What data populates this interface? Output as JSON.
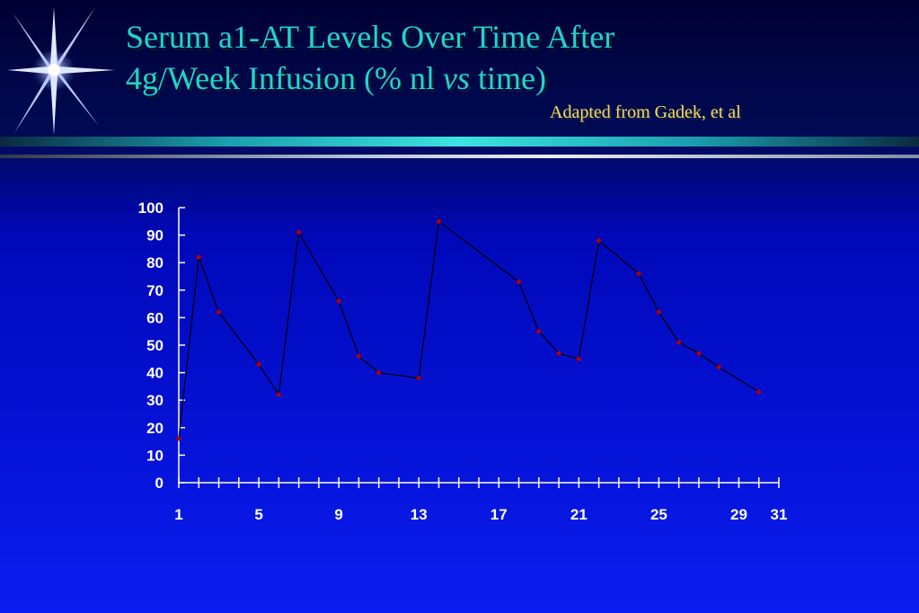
{
  "header": {
    "title_line1": "Serum a1-AT Levels Over Time After",
    "title_line2_before": "4g/Week Infusion (% nl ",
    "title_line2_italic": "vs",
    "title_line2_after": " time)",
    "source_note": "Adapted from Gadek, et al"
  },
  "colors": {
    "title": "#22d3d3",
    "source_note": "#f0e060",
    "line": "#000000",
    "marker": "#b00000",
    "axis": "#ffffff"
  },
  "decoration": {
    "logo_icon": "starburst-icon"
  },
  "chart_data": {
    "type": "line",
    "title": "",
    "xlabel": "",
    "ylabel": "",
    "xlim": [
      1,
      31
    ],
    "ylim": [
      0,
      100
    ],
    "y_ticks": [
      0,
      10,
      20,
      30,
      40,
      50,
      60,
      70,
      80,
      90,
      100
    ],
    "x_tick_labels": [
      1,
      5,
      9,
      13,
      17,
      21,
      25,
      29,
      31
    ],
    "grid": false,
    "legend": "none",
    "series": [
      {
        "x": [
          1,
          2,
          3,
          5,
          6,
          7,
          9,
          10,
          11,
          13,
          14,
          18,
          19,
          20,
          21,
          22,
          24,
          25,
          26,
          27,
          28,
          30
        ],
        "y": [
          16,
          82,
          62,
          43,
          32,
          91,
          66,
          46,
          40,
          38,
          95,
          73,
          55,
          47,
          45,
          88,
          76,
          62,
          51,
          47,
          42,
          33
        ]
      }
    ]
  }
}
